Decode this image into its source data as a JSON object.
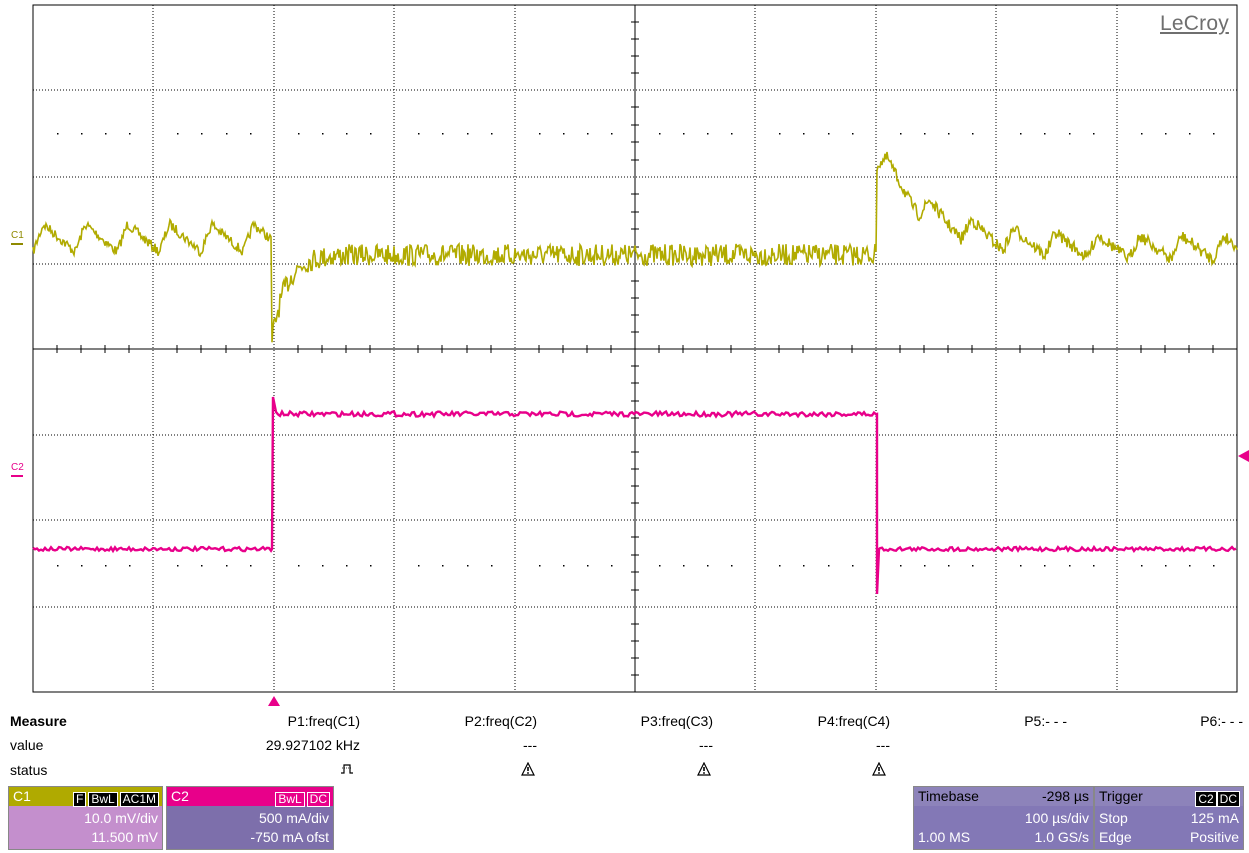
{
  "brand": "LeCroy",
  "colors": {
    "c1_trace": "#b1ab00",
    "c2_trace": "#e8008a",
    "grid": "#000000"
  },
  "channels": {
    "c1_label": "C1",
    "c2_label": "C2"
  },
  "measure": {
    "title": "Measure",
    "row_labels": [
      "value",
      "status"
    ],
    "params": [
      {
        "name": "P1:freq(C1)",
        "value": "29.927102 kHz",
        "status": "pulse-icon"
      },
      {
        "name": "P2:freq(C2)",
        "value": "---",
        "status": "warning-icon"
      },
      {
        "name": "P3:freq(C3)",
        "value": "---",
        "status": "warning-icon"
      },
      {
        "name": "P4:freq(C4)",
        "value": "---",
        "status": "warning-icon"
      },
      {
        "name": "P5:- - -",
        "value": "",
        "status": ""
      },
      {
        "name": "P6:- - -",
        "value": "",
        "status": ""
      }
    ]
  },
  "c1_box": {
    "label": "C1",
    "tags": [
      "F",
      "BwL",
      "AC1M"
    ],
    "vdiv": "10.0 mV/div",
    "offset": "11.500 mV"
  },
  "c2_box": {
    "label": "C2",
    "tags": [
      "BwL",
      "DC"
    ],
    "vdiv": "500 mA/div",
    "offset": "-750 mA ofst"
  },
  "timebase": {
    "label": "Timebase",
    "delay": "-298 µs",
    "tdiv": "100 µs/div",
    "samples": "1.00 MS",
    "rate": "1.0 GS/s"
  },
  "trigger": {
    "label": "Trigger",
    "source": "C2",
    "coupling": "DC",
    "mode": "Stop",
    "level": "125 mA",
    "type": "Edge",
    "slope": "Positive"
  }
}
